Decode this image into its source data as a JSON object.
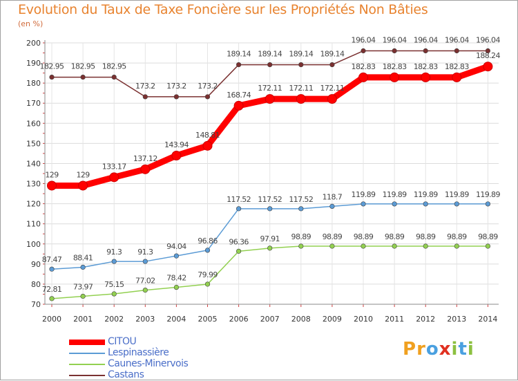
{
  "chart_data": {
    "type": "line",
    "title": "Evolution du Taux de Taxe Foncière sur les Propriétés Non Bâties",
    "unit_label": "(en %)",
    "xlabel": "",
    "ylabel": "",
    "x": [
      "2000",
      "2001",
      "2002",
      "2003",
      "2004",
      "2005",
      "2006",
      "2007",
      "2008",
      "2009",
      "2010",
      "2011",
      "2012",
      "2013",
      "2014"
    ],
    "ylim": [
      70,
      200
    ],
    "yticks": [
      70,
      80,
      90,
      100,
      110,
      120,
      130,
      140,
      150,
      160,
      170,
      180,
      190,
      200
    ],
    "grid": true,
    "legend_position": "bottom-left",
    "series": [
      {
        "name": "Castans",
        "color": "#7a3030",
        "values": [
          182.95,
          182.95,
          182.95,
          173.2,
          173.2,
          173.2,
          189.14,
          189.14,
          189.14,
          189.14,
          196.04,
          196.04,
          196.04,
          196.04,
          196.04
        ],
        "labels": [
          "182.95",
          "182.95",
          "182.95",
          "173.2",
          "173.2",
          "173.2",
          "189.14",
          "189.14",
          "189.14",
          "189.14",
          "196.04",
          "196.04",
          "196.04",
          "196.04",
          "196.04"
        ]
      },
      {
        "name": "Lespinassière",
        "color": "#5b9bd5",
        "values": [
          87.47,
          88.41,
          91.3,
          91.3,
          94.04,
          96.86,
          117.52,
          117.52,
          117.52,
          118.7,
          119.89,
          119.89,
          119.89,
          119.89,
          119.89
        ],
        "labels": [
          "87.47",
          "88.41",
          "91.3",
          "91.3",
          "94.04",
          "96.86",
          "117.52",
          "117.52",
          "117.52",
          "118.7",
          "119.89",
          "119.89",
          "119.89",
          "119.89",
          "119.89"
        ]
      },
      {
        "name": "Caunes-Minervois",
        "color": "#92d050",
        "values": [
          72.81,
          73.97,
          75.15,
          77.02,
          78.42,
          79.99,
          96.36,
          97.91,
          98.89,
          98.89,
          98.89,
          98.89,
          98.89,
          98.89,
          98.89
        ],
        "labels": [
          "72.81",
          "73.97",
          "75.15",
          "77.02",
          "78.42",
          "79.99",
          "96.36",
          "97.91",
          "98.89",
          "98.89",
          "98.89",
          "98.89",
          "98.89",
          "98.89",
          "98.89"
        ]
      },
      {
        "name": "CITOU",
        "color": "#ff0000",
        "values": [
          129,
          129,
          133.17,
          137.12,
          143.94,
          148.81,
          168.74,
          172.11,
          172.11,
          172.11,
          182.83,
          182.83,
          182.83,
          182.83,
          188.24
        ],
        "labels": [
          "129",
          "129",
          "133.17",
          "137.12",
          "143.94",
          "148.81",
          "168.74",
          "172.11",
          "172.11",
          "172.11",
          "182.83",
          "182.83",
          "182.83",
          "182.83",
          "188.24"
        ]
      }
    ],
    "legend": [
      "CITOU",
      "Lespinassière",
      "Caunes-Minervois",
      "Castans"
    ]
  },
  "logo": {
    "letters": [
      "P",
      "r",
      "o",
      "x",
      "i",
      "t",
      "i"
    ],
    "colors": [
      "#f0a020",
      "#f0a020",
      "#4aa0e0",
      "#e03020",
      "#8cc040",
      "#4aa0e0",
      "#8cc040"
    ]
  }
}
